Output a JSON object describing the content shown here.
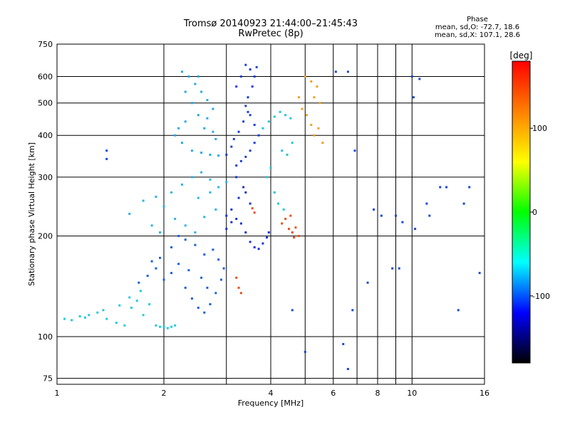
{
  "chart_data": {
    "type": "scatter",
    "title": "Tromsø 20140923 21:44:00–21:45:43",
    "subtitle": "RwPretec (8p)",
    "xlabel": "Frequency [MHz]",
    "ylabel": "Stationary phase Virtual Height [km]",
    "x_scale": "log",
    "y_scale": "log",
    "xlim": [
      1,
      16
    ],
    "ylim": [
      72,
      750
    ],
    "x_ticks": [
      1,
      2,
      4,
      6,
      8,
      10,
      16
    ],
    "x_minor_ticks": [
      3,
      5,
      7,
      9
    ],
    "y_ticks": [
      75,
      100,
      200,
      300,
      400,
      500,
      600,
      750
    ],
    "grid": true,
    "phase_header": "Phase",
    "phase_stats": [
      "mean, sd,O: -72.7, 18.6",
      "mean, sd,X: 107.1, 28.6"
    ],
    "colorbar": {
      "label": "[deg]",
      "range": [
        -180,
        180
      ],
      "ticks": [
        100,
        0,
        -100
      ],
      "colors": [
        "#ff0000",
        "#ff8000",
        "#ffff00",
        "#00ff00",
        "#00ffff",
        "#0000ff",
        "#000000"
      ]
    },
    "series": [
      {
        "points": [
          [
            1.05,
            113
          ],
          [
            1.1,
            112
          ],
          [
            1.16,
            115
          ],
          [
            1.23,
            116
          ],
          [
            1.3,
            118
          ],
          [
            1.38,
            113
          ],
          [
            1.47,
            110
          ],
          [
            1.55,
            108
          ],
          [
            1.62,
            122
          ],
          [
            1.68,
            128
          ],
          [
            1.75,
            116
          ],
          [
            1.82,
            125
          ],
          [
            1.9,
            108
          ],
          [
            1.95,
            107
          ],
          [
            2.0,
            107
          ],
          [
            2.05,
            106
          ],
          [
            2.1,
            107
          ],
          [
            2.15,
            108
          ],
          [
            1.2,
            114
          ],
          [
            1.35,
            120
          ],
          [
            1.5,
            124
          ],
          [
            1.6,
            131
          ],
          [
            1.72,
            137
          ]
        ],
        "color": "#1ecbe1"
      },
      {
        "points": [
          [
            1.7,
            145
          ],
          [
            1.8,
            152
          ],
          [
            1.9,
            160
          ],
          [
            2.0,
            148
          ],
          [
            2.1,
            155
          ],
          [
            2.2,
            165
          ],
          [
            2.3,
            140
          ],
          [
            2.4,
            130
          ],
          [
            2.5,
            122
          ],
          [
            2.6,
            118
          ],
          [
            2.7,
            125
          ],
          [
            2.8,
            135
          ],
          [
            2.9,
            148
          ],
          [
            2.95,
            160
          ],
          [
            2.85,
            170
          ],
          [
            2.75,
            182
          ],
          [
            2.6,
            176
          ],
          [
            2.45,
            188
          ],
          [
            2.3,
            195
          ],
          [
            2.2,
            200
          ],
          [
            2.1,
            185
          ],
          [
            1.95,
            172
          ],
          [
            1.85,
            168
          ],
          [
            2.55,
            150
          ],
          [
            2.35,
            158
          ],
          [
            2.65,
            140
          ]
        ],
        "color": "#1a5fe0"
      },
      {
        "points": [
          [
            1.6,
            233
          ],
          [
            1.75,
            255
          ],
          [
            1.9,
            262
          ],
          [
            2.0,
            245
          ],
          [
            2.1,
            270
          ],
          [
            2.25,
            285
          ],
          [
            2.4,
            300
          ],
          [
            2.55,
            310
          ],
          [
            2.7,
            295
          ],
          [
            2.85,
            280
          ],
          [
            3.0,
            290
          ],
          [
            2.15,
            225
          ],
          [
            2.3,
            215
          ],
          [
            2.45,
            205
          ],
          [
            2.6,
            228
          ],
          [
            2.8,
            240
          ],
          [
            1.85,
            215
          ],
          [
            1.95,
            205
          ],
          [
            2.5,
            260
          ],
          [
            2.7,
            270
          ]
        ],
        "color": "#27b5e8"
      },
      {
        "points": [
          [
            2.25,
            620
          ],
          [
            2.35,
            600
          ],
          [
            2.45,
            570
          ],
          [
            2.55,
            540
          ],
          [
            2.65,
            510
          ],
          [
            2.75,
            480
          ],
          [
            2.5,
            460
          ],
          [
            2.3,
            440
          ],
          [
            2.2,
            420
          ],
          [
            2.15,
            400
          ],
          [
            2.25,
            380
          ],
          [
            2.4,
            360
          ],
          [
            2.55,
            355
          ],
          [
            2.7,
            350
          ],
          [
            2.85,
            348
          ],
          [
            2.4,
            500
          ],
          [
            2.6,
            420
          ],
          [
            2.8,
            390
          ],
          [
            2.3,
            540
          ],
          [
            2.5,
            600
          ],
          [
            2.65,
            450
          ],
          [
            2.75,
            410
          ]
        ],
        "color": "#23a9ea"
      },
      {
        "points": [
          [
            3.4,
            650
          ],
          [
            3.5,
            630
          ],
          [
            3.6,
            600
          ],
          [
            3.55,
            560
          ],
          [
            3.45,
            520
          ],
          [
            3.4,
            490
          ],
          [
            3.5,
            460
          ],
          [
            3.6,
            430
          ],
          [
            3.7,
            400
          ],
          [
            3.6,
            380
          ],
          [
            3.5,
            360
          ],
          [
            3.4,
            345
          ],
          [
            3.3,
            335
          ],
          [
            3.2,
            325
          ],
          [
            3.1,
            370
          ],
          [
            3.0,
            350
          ],
          [
            3.15,
            390
          ],
          [
            3.25,
            410
          ],
          [
            3.35,
            440
          ],
          [
            3.45,
            470
          ],
          [
            3.65,
            640
          ],
          [
            3.3,
            600
          ],
          [
            3.2,
            560
          ]
        ],
        "color": "#1c3fd8"
      },
      {
        "points": [
          [
            3.0,
            210
          ],
          [
            3.1,
            220
          ],
          [
            3.2,
            225
          ],
          [
            3.3,
            218
          ],
          [
            3.4,
            205
          ],
          [
            3.5,
            192
          ],
          [
            3.6,
            185
          ],
          [
            3.7,
            183
          ],
          [
            3.8,
            190
          ],
          [
            3.9,
            198
          ],
          [
            3.95,
            205
          ],
          [
            3.1,
            240
          ],
          [
            3.25,
            260
          ],
          [
            3.4,
            270
          ],
          [
            3.2,
            300
          ],
          [
            3.35,
            280
          ],
          [
            3.5,
            250
          ],
          [
            3.0,
            230
          ]
        ],
        "color": "#1a34d6"
      },
      {
        "points": [
          [
            3.8,
            420
          ],
          [
            3.95,
            440
          ],
          [
            4.1,
            455
          ],
          [
            4.25,
            470
          ],
          [
            4.4,
            460
          ],
          [
            4.55,
            450
          ],
          [
            4.3,
            360
          ],
          [
            4.45,
            350
          ],
          [
            4.6,
            380
          ],
          [
            4.2,
            250
          ],
          [
            4.35,
            240
          ],
          [
            4.1,
            270
          ],
          [
            3.9,
            300
          ],
          [
            4.0,
            320
          ]
        ],
        "color": "#1fc8d0"
      },
      {
        "points": [
          [
            4.5,
            210
          ],
          [
            4.6,
            205
          ],
          [
            4.7,
            212
          ],
          [
            4.8,
            200
          ],
          [
            4.4,
            225
          ],
          [
            4.3,
            218
          ],
          [
            4.55,
            230
          ],
          [
            4.65,
            198
          ],
          [
            3.6,
            235
          ],
          [
            3.55,
            242
          ],
          [
            3.2,
            150
          ],
          [
            3.25,
            140
          ],
          [
            3.3,
            135
          ]
        ],
        "color": "#e8501a"
      },
      {
        "points": [
          [
            4.9,
            480
          ],
          [
            5.05,
            460
          ],
          [
            5.2,
            430
          ],
          [
            5.3,
            400
          ],
          [
            5.45,
            420
          ],
          [
            5.6,
            380
          ],
          [
            5.0,
            600
          ],
          [
            5.2,
            580
          ],
          [
            5.4,
            560
          ],
          [
            5.3,
            520
          ],
          [
            4.8,
            520
          ],
          [
            5.5,
            500
          ]
        ],
        "color": "#f0a020"
      },
      {
        "points": [
          [
            6.1,
            620
          ],
          [
            6.6,
            620
          ],
          [
            6.8,
            120
          ],
          [
            6.4,
            95
          ],
          [
            6.9,
            360
          ],
          [
            7.8,
            240
          ],
          [
            8.2,
            230
          ],
          [
            9.0,
            230
          ],
          [
            9.2,
            160
          ],
          [
            10.0,
            600
          ],
          [
            10.1,
            520
          ],
          [
            10.5,
            590
          ],
          [
            11.0,
            250
          ],
          [
            12.0,
            280
          ],
          [
            12.5,
            280
          ],
          [
            13.5,
            120
          ],
          [
            14.5,
            280
          ],
          [
            15.5,
            155
          ],
          [
            7.5,
            145
          ],
          [
            8.8,
            160
          ],
          [
            9.4,
            220
          ],
          [
            10.2,
            210
          ],
          [
            1.38,
            360
          ],
          [
            1.38,
            340
          ],
          [
            5.0,
            90
          ],
          [
            6.6,
            80
          ],
          [
            4.6,
            120
          ],
          [
            11.2,
            230
          ],
          [
            14.0,
            250
          ]
        ],
        "color": "#1848d8"
      }
    ]
  }
}
